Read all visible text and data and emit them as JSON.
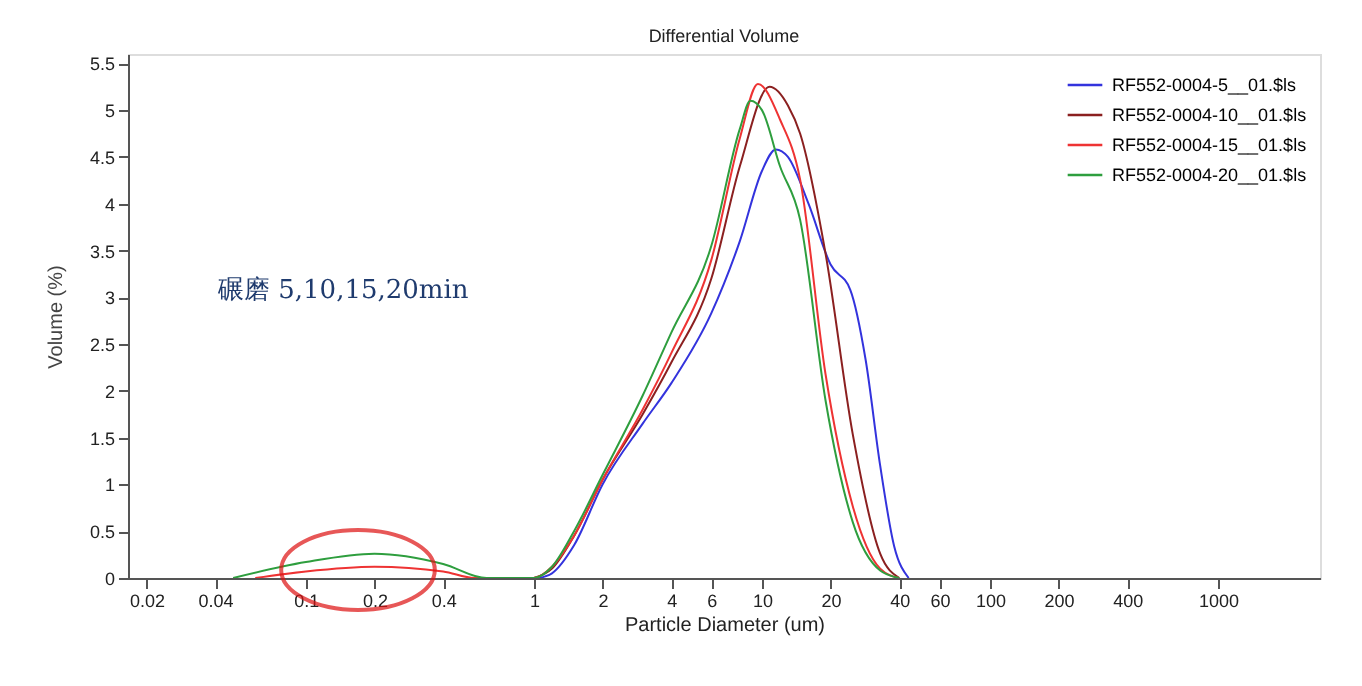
{
  "chart_data": {
    "type": "line",
    "title": "Differential Volume",
    "xlabel": "Particle Diameter (um)",
    "ylabel": "Volume (%)",
    "annotations": [
      "碾磨 5,10,15,20min"
    ],
    "log": "x",
    "xlim": [
      0.0166,
      2800
    ],
    "xticks": [
      0.02,
      0.04,
      0.1,
      0.2,
      0.4,
      1,
      2,
      4,
      6,
      10,
      20,
      40,
      60,
      100,
      200,
      400,
      1000
    ],
    "ylim": [
      0,
      5.6
    ],
    "yticks": [
      0,
      0.5,
      1,
      1.5,
      2,
      2.5,
      3,
      3.5,
      4,
      4.5,
      5,
      5.5
    ],
    "grid": false,
    "legend": "top right",
    "marker": "none",
    "line_style": "solid",
    "series": [
      {
        "name": "RF552-0004-5__01.$ls",
        "color": "#3333dd",
        "x": [
          1.05,
          1.2,
          1.5,
          2,
          3,
          4,
          6,
          8,
          10,
          11.5,
          13,
          16,
          20,
          24.4,
          28.5,
          33,
          38,
          44
        ],
        "values": [
          0,
          0.05,
          0.35,
          1.0,
          1.65,
          2.08,
          2.83,
          3.6,
          4.35,
          4.58,
          4.5,
          4.0,
          3.35,
          3.08,
          2.33,
          1.2,
          0.34,
          0
        ]
      },
      {
        "name": "RF552-0004-10__01.$ls",
        "color": "#8b2020",
        "x": [
          1.0,
          1.2,
          1.5,
          2,
          3,
          4,
          6,
          8,
          10.8,
          13,
          14.7,
          19,
          25,
          33,
          40
        ],
        "values": [
          0,
          0.1,
          0.45,
          1.05,
          1.75,
          2.3,
          3.2,
          4.4,
          5.25,
          5.05,
          4.75,
          3.47,
          1.54,
          0.26,
          0
        ]
      },
      {
        "name": "RF552-0004-15__01.$ls",
        "color": "#ee3333",
        "x": [
          0.06,
          0.1,
          0.2,
          0.4,
          0.55,
          1.0,
          1.2,
          1.5,
          2,
          3,
          4,
          6,
          8,
          9.6,
          12,
          14.7,
          19,
          25,
          33,
          40
        ],
        "values": [
          0,
          0.07,
          0.12,
          0.07,
          0,
          0,
          0.12,
          0.45,
          1.05,
          1.8,
          2.4,
          3.4,
          4.7,
          5.28,
          4.9,
          4.26,
          2.18,
          0.77,
          0.1,
          0
        ]
      },
      {
        "name": "RF552-0004-20__01.$ls",
        "color": "#2e9e3e",
        "x": [
          0.048,
          0.1,
          0.2,
          0.4,
          0.62,
          1.0,
          1.2,
          1.5,
          2,
          3,
          4,
          6,
          8,
          8.9,
          10,
          12,
          14.7,
          19,
          25,
          33,
          40
        ],
        "values": [
          0,
          0.17,
          0.26,
          0.15,
          0,
          0,
          0.12,
          0.5,
          1.1,
          1.95,
          2.62,
          3.55,
          4.8,
          5.1,
          5.0,
          4.4,
          3.83,
          1.9,
          0.6,
          0.08,
          0
        ]
      }
    ]
  }
}
